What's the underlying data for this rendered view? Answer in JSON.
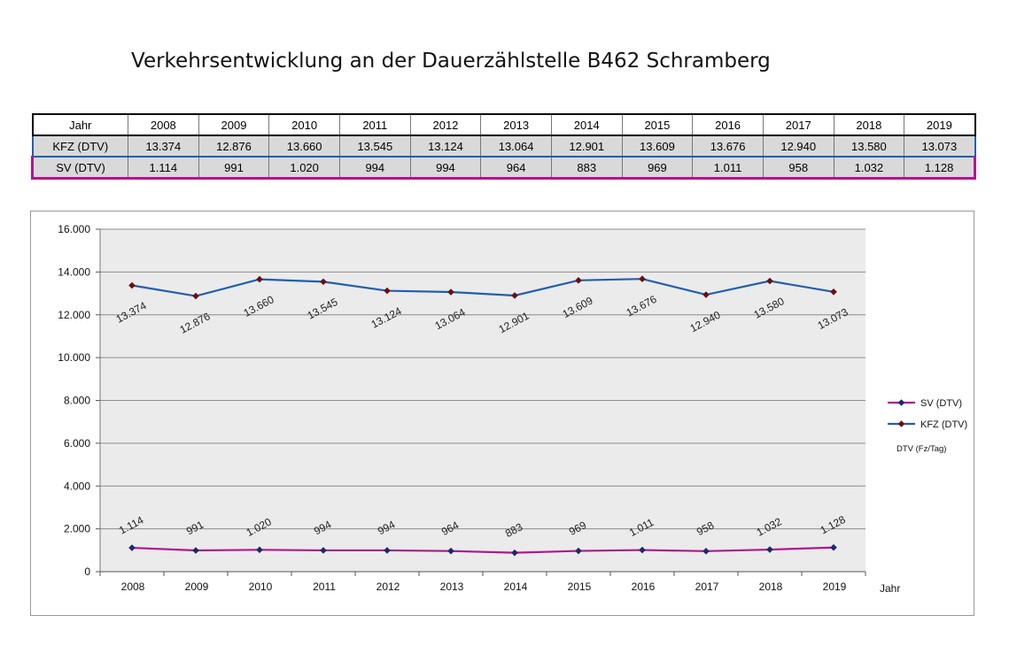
{
  "page": {
    "title": "Verkehrsentwicklung an der Dauerzählstelle B462 Schramberg"
  },
  "table": {
    "header_label": "Jahr",
    "years": [
      "2008",
      "2009",
      "2010",
      "2011",
      "2012",
      "2013",
      "2014",
      "2015",
      "2016",
      "2017",
      "2018",
      "2019"
    ],
    "rows": [
      {
        "label": "KFZ (DTV)",
        "cells": [
          "13.374",
          "12.876",
          "13.660",
          "13.545",
          "13.124",
          "13.064",
          "12.901",
          "13.609",
          "13.676",
          "12.940",
          "13.580",
          "13.073"
        ]
      },
      {
        "label": "SV (DTV)",
        "cells": [
          "1.114",
          "991",
          "1.020",
          "994",
          "994",
          "964",
          "883",
          "969",
          "1.011",
          "958",
          "1.032",
          "1.128"
        ]
      }
    ]
  },
  "chart_data": {
    "type": "line",
    "x": [
      "2008",
      "2009",
      "2010",
      "2011",
      "2012",
      "2013",
      "2014",
      "2015",
      "2016",
      "2017",
      "2018",
      "2019"
    ],
    "xlabel": "Jahr",
    "ylim": [
      0,
      16000
    ],
    "yticks": [
      0,
      2000,
      4000,
      6000,
      8000,
      10000,
      12000,
      14000,
      16000
    ],
    "ytick_labels": [
      "0",
      "2.000",
      "4.000",
      "6.000",
      "8.000",
      "10.000",
      "12.000",
      "14.000",
      "16.000"
    ],
    "grid": true,
    "legend_position": "right",
    "legend_note": "DTV (Fz/Tag)",
    "series": [
      {
        "name": "SV (DTV)",
        "color": "#b0168e",
        "marker_color": "#1a2a6c",
        "values": [
          1114,
          991,
          1020,
          994,
          994,
          964,
          883,
          969,
          1011,
          958,
          1032,
          1128
        ],
        "labels": [
          "1.114",
          "991",
          "1.020",
          "994",
          "994",
          "964",
          "883",
          "969",
          "1.011",
          "958",
          "1.032",
          "1.128"
        ]
      },
      {
        "name": "KFZ (DTV)",
        "color": "#1f5fae",
        "marker_color": "#6b0f0f",
        "values": [
          13374,
          12876,
          13660,
          13545,
          13124,
          13064,
          12901,
          13609,
          13676,
          12940,
          13580,
          13073
        ],
        "labels": [
          "13.374",
          "12.876",
          "13.660",
          "13.545",
          "13.124",
          "13.064",
          "12.901",
          "13.609",
          "13.676",
          "12.940",
          "13.580",
          "13.073"
        ]
      }
    ]
  }
}
